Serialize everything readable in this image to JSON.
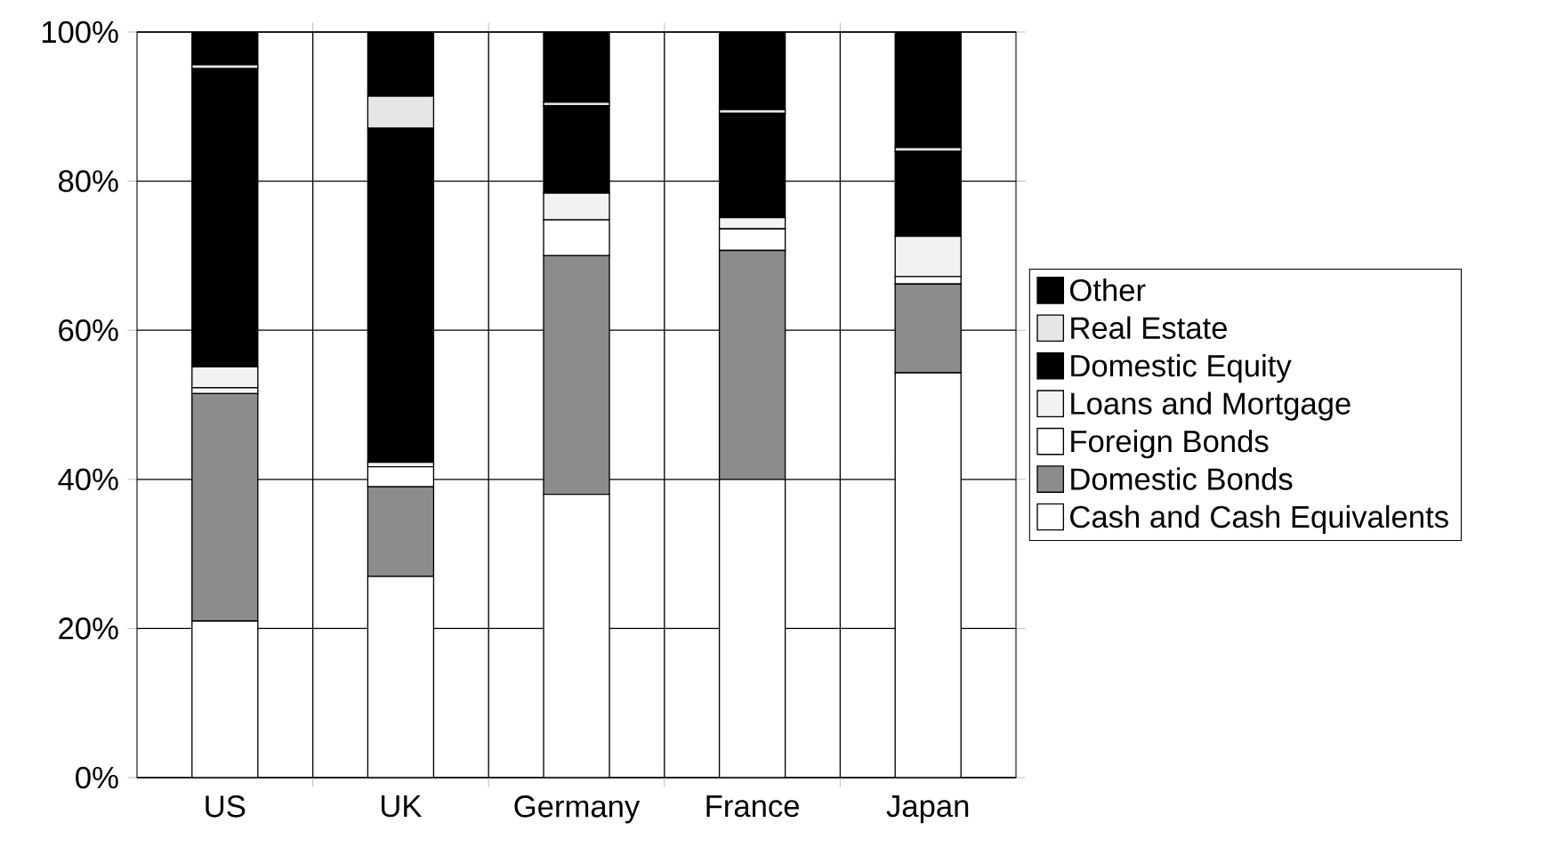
{
  "chart_data": {
    "type": "bar",
    "stacked": true,
    "categories": [
      "US",
      "UK",
      "Germany",
      "France",
      "Japan"
    ],
    "series": [
      {
        "name": "Cash and Cash Equivalents",
        "color": "#ffffff",
        "values": [
          21,
          27,
          38,
          40,
          54.3
        ]
      },
      {
        "name": "Domestic Bonds",
        "color": "#8c8c8c",
        "values": [
          30.5,
          12,
          32,
          30.7,
          11.9
        ]
      },
      {
        "name": "Foreign Bonds",
        "color": "#ffffff",
        "values": [
          0.8,
          2.7,
          4.8,
          2.9,
          1
        ]
      },
      {
        "name": "Loans and Mortgage",
        "color": "#f2f2f2",
        "values": [
          2.8,
          0.6,
          3.6,
          1.5,
          5.4
        ]
      },
      {
        "name": "Domestic Equity",
        "color": "#000000",
        "values": [
          40,
          44.8,
          11.7,
          14,
          11.4
        ]
      },
      {
        "name": "Real Estate",
        "color": "#e6e6e6",
        "values": [
          0.5,
          4.3,
          0.5,
          0.5,
          0.5
        ]
      },
      {
        "name": "Other",
        "color": "#000000",
        "values": [
          4.4,
          8.6,
          9.4,
          10.4,
          15.5
        ]
      }
    ],
    "ylim": [
      0,
      100
    ],
    "yticks": [
      {
        "value": 0,
        "label": "0%"
      },
      {
        "value": 20,
        "label": "20%"
      },
      {
        "value": 40,
        "label": "40%"
      },
      {
        "value": 60,
        "label": "60%"
      },
      {
        "value": 80,
        "label": "80%"
      },
      {
        "value": 100,
        "label": "100%"
      }
    ],
    "grid": true,
    "legend": "right"
  }
}
